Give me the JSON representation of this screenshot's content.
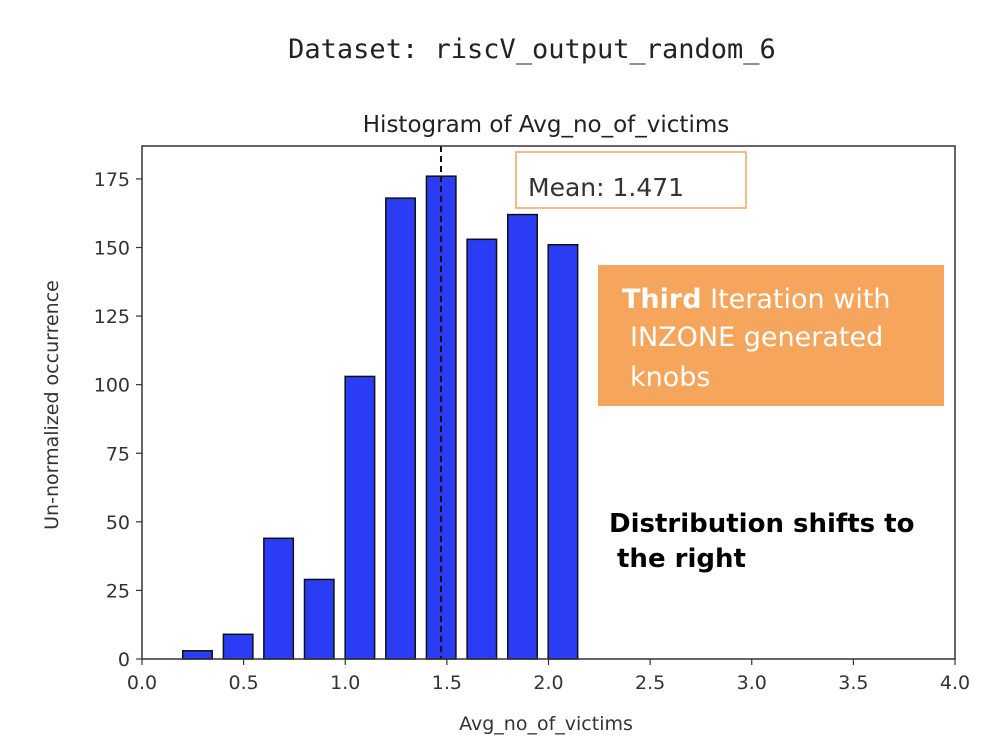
{
  "dataset_label": "Dataset: riscV_output_random_6",
  "colors": {
    "bar_fill": "#2b3cf5",
    "bar_edge": "#111111",
    "mean_box_border": "#f4a460",
    "callout_fill": "#f6a55c",
    "callout_text": "#ffffff",
    "note_text": "#000000"
  },
  "mean_box": {
    "text": "Mean: 1.471"
  },
  "callout": {
    "bold": "Third",
    "line1_rest": " Iteration with",
    "line2": "INZONE generated",
    "line3": "knobs"
  },
  "note": {
    "line1": "Distribution shifts to",
    "line2": "the right"
  },
  "chart_data": {
    "type": "bar",
    "title": "Histogram of Avg_no_of_victims",
    "xlabel": "Avg_no_of_victims",
    "ylabel": "Un-normalized occurrence",
    "xlim": [
      0.0,
      4.0
    ],
    "ylim": [
      0,
      187
    ],
    "x_ticks": [
      "0.0",
      "0.5",
      "1.0",
      "1.5",
      "2.0",
      "2.5",
      "3.0",
      "3.5",
      "4.0"
    ],
    "y_ticks": [
      "0",
      "25",
      "50",
      "75",
      "100",
      "125",
      "150",
      "175"
    ],
    "bin_centers": [
      0.273,
      0.473,
      0.672,
      0.872,
      1.072,
      1.272,
      1.472,
      1.672,
      1.872,
      2.071
    ],
    "bin_width": 0.145,
    "values": [
      3,
      9,
      44,
      29,
      103,
      168,
      176,
      153,
      162,
      151
    ],
    "mean": 1.471,
    "grid": false
  }
}
